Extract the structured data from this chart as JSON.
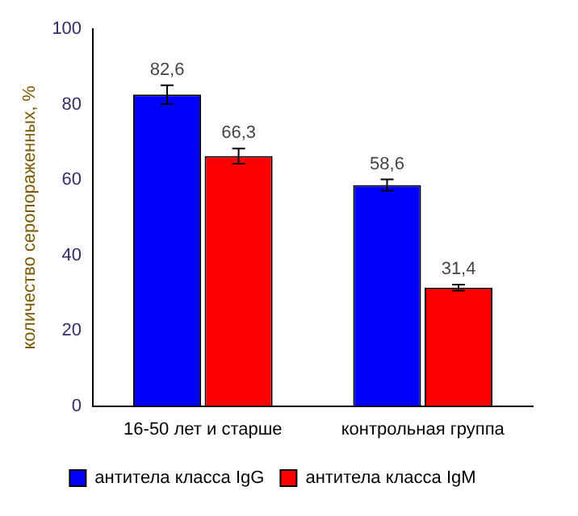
{
  "chart_data": {
    "type": "bar",
    "ylabel": "количество серопораженных, %",
    "categories": [
      "16-50 лет и старше",
      "контрольная группа"
    ],
    "series": [
      {
        "name": "антитела класса IgG",
        "color": "#0000ff",
        "values": [
          82.6,
          58.6
        ],
        "errors": [
          2.5,
          1.5
        ],
        "value_labels": [
          "82,6",
          "58,6"
        ]
      },
      {
        "name": "антитела класса IgM",
        "color": "#ff0000",
        "values": [
          66.3,
          31.4
        ],
        "errors": [
          2,
          0.8
        ],
        "value_labels": [
          "66,3",
          "31,4"
        ]
      }
    ],
    "ylim": [
      0,
      100
    ],
    "yticks": [
      0,
      20,
      40,
      60,
      80,
      100
    ],
    "grid": false,
    "legend": "bottom"
  }
}
